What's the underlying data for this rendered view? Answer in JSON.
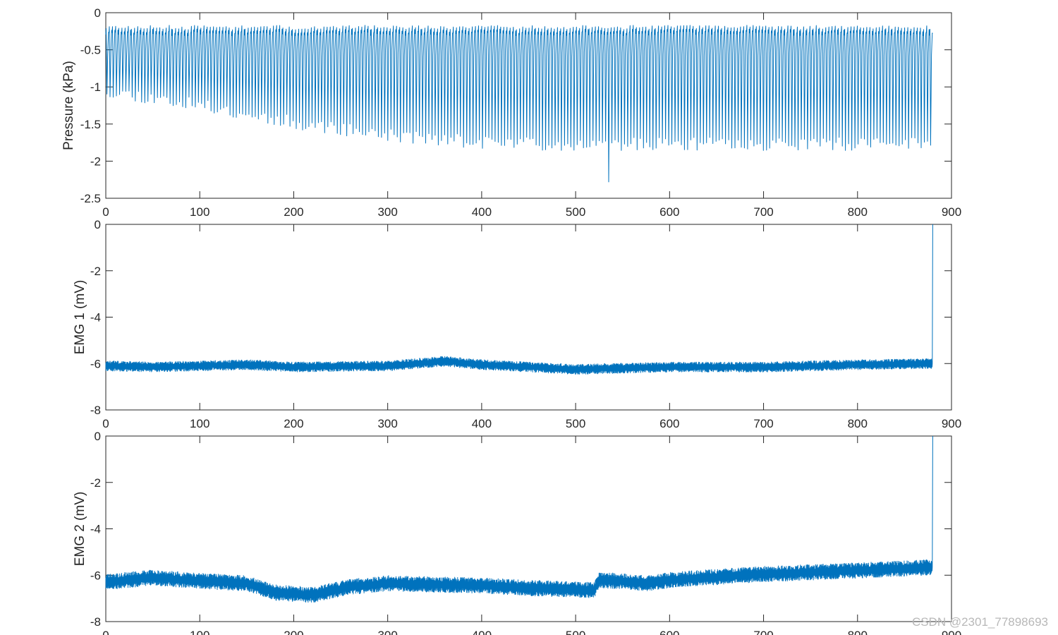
{
  "watermark": "CSDN @2301_77898693",
  "colors": {
    "line": "#0072BD",
    "axes": "#262626",
    "background": "#ffffff"
  },
  "chart_data": [
    {
      "type": "line",
      "ylabel": "Pressure (kPa)",
      "xlabel": "",
      "xlim": [
        0,
        900
      ],
      "ylim": [
        -2.5,
        0
      ],
      "xticks": [
        0,
        100,
        200,
        300,
        400,
        500,
        600,
        700,
        800,
        900
      ],
      "yticks": [
        0,
        -0.5,
        -1,
        -1.5,
        -2,
        -2.5
      ],
      "ytick_labels": [
        "0",
        "-0.5",
        "-1",
        "-1.5",
        "-2",
        "-2.5"
      ],
      "grid": false,
      "signal": {
        "kind": "oscillating",
        "x_start": 0,
        "x_end": 880,
        "cycles": 262,
        "peak": -0.28,
        "trough_profile": [
          [
            0,
            -1.05
          ],
          [
            100,
            -1.25
          ],
          [
            200,
            -1.48
          ],
          [
            300,
            -1.65
          ],
          [
            400,
            -1.75
          ],
          [
            500,
            -1.77
          ],
          [
            600,
            -1.77
          ],
          [
            700,
            -1.77
          ],
          [
            800,
            -1.77
          ],
          [
            880,
            -1.75
          ]
        ],
        "min_spike": {
          "x": 535,
          "y": -2.28
        }
      }
    },
    {
      "type": "line",
      "ylabel": "EMG 1 (mV)",
      "xlabel": "",
      "xlim": [
        0,
        900
      ],
      "ylim": [
        -8,
        0
      ],
      "xticks": [
        0,
        100,
        200,
        300,
        400,
        500,
        600,
        700,
        800,
        900
      ],
      "yticks": [
        0,
        -2,
        -4,
        -6,
        -8
      ],
      "ytick_labels": [
        "0",
        "-2",
        "-4",
        "-6",
        "-8"
      ],
      "grid": false,
      "signal": {
        "kind": "noisy-baseline",
        "x_start": 0,
        "x_end": 880,
        "baseline": [
          [
            0,
            -6.1
          ],
          [
            50,
            -6.15
          ],
          [
            100,
            -6.1
          ],
          [
            150,
            -6.05
          ],
          [
            200,
            -6.15
          ],
          [
            300,
            -6.1
          ],
          [
            360,
            -5.9
          ],
          [
            400,
            -6.05
          ],
          [
            500,
            -6.25
          ],
          [
            600,
            -6.15
          ],
          [
            700,
            -6.15
          ],
          [
            800,
            -6.05
          ],
          [
            880,
            -6.0
          ]
        ],
        "noise_amplitude": 0.18,
        "end_spike": {
          "x": 880,
          "y": 0
        }
      }
    },
    {
      "type": "line",
      "ylabel": "EMG 2 (mV)",
      "xlabel": "",
      "xlim": [
        0,
        900
      ],
      "ylim": [
        -8,
        0
      ],
      "xticks": [
        0,
        100,
        200,
        300,
        400,
        500,
        600,
        700,
        800,
        900
      ],
      "yticks": [
        0,
        -2,
        -4,
        -6,
        -8
      ],
      "ytick_labels": [
        "0",
        "-2",
        "-4",
        "-6",
        "-8"
      ],
      "grid": false,
      "signal": {
        "kind": "noisy-baseline",
        "x_start": 0,
        "x_end": 880,
        "baseline": [
          [
            0,
            -6.3
          ],
          [
            50,
            -6.1
          ],
          [
            100,
            -6.25
          ],
          [
            150,
            -6.35
          ],
          [
            180,
            -6.75
          ],
          [
            220,
            -6.85
          ],
          [
            260,
            -6.5
          ],
          [
            300,
            -6.35
          ],
          [
            400,
            -6.45
          ],
          [
            450,
            -6.55
          ],
          [
            520,
            -6.65
          ],
          [
            525,
            -6.2
          ],
          [
            580,
            -6.35
          ],
          [
            600,
            -6.2
          ],
          [
            700,
            -5.95
          ],
          [
            800,
            -5.8
          ],
          [
            880,
            -5.65
          ]
        ],
        "noise_amplitude": 0.28,
        "end_spike": {
          "x": 880,
          "y": 0
        }
      }
    }
  ]
}
